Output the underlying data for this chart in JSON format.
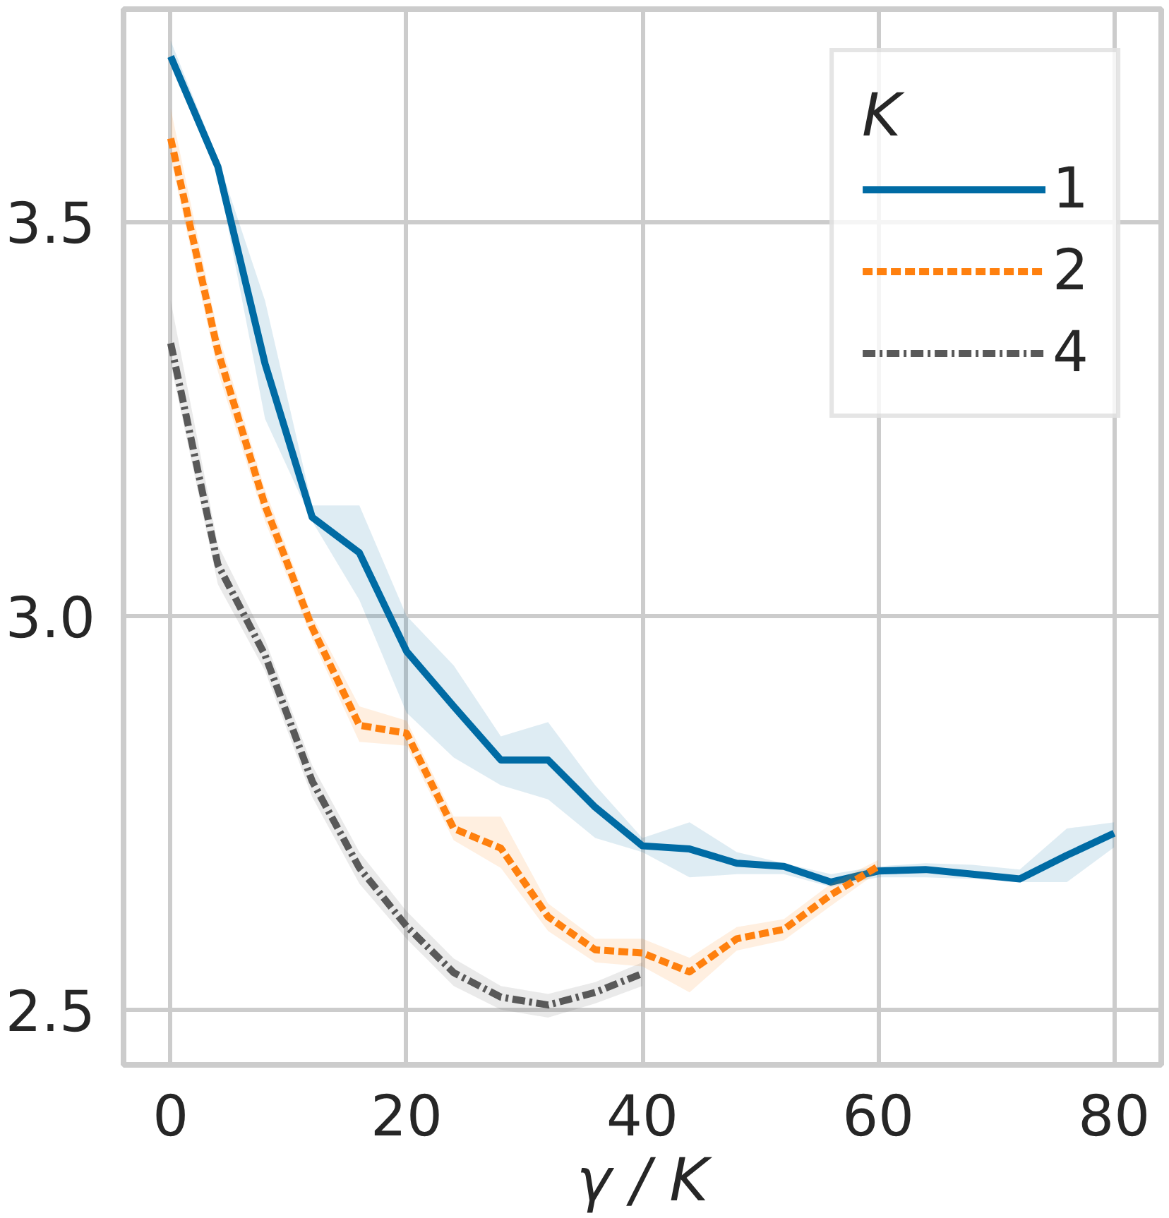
{
  "chart_data": {
    "type": "line",
    "xlabel": "γ / K",
    "legend_title": "K",
    "legend": "top right",
    "grid": true,
    "xlim": [
      -4,
      84
    ],
    "ylim": [
      2.43,
      3.77
    ],
    "xticks": [
      0,
      20,
      40,
      60,
      80
    ],
    "yticks": [
      2.5,
      {
        "value": 3.0,
        "label": "3.0"
      },
      3.5
    ],
    "series": [
      {
        "name": "1",
        "color": "#006ba4",
        "line_style": "solid",
        "x": [
          0,
          4,
          8,
          12,
          16,
          20,
          24,
          28,
          32,
          36,
          40,
          44,
          48,
          52,
          56,
          60,
          64,
          68,
          72,
          76,
          80
        ],
        "values": [
          3.71,
          3.57,
          3.32,
          3.125,
          3.08,
          2.955,
          2.885,
          2.817,
          2.817,
          2.757,
          2.708,
          2.704,
          2.686,
          2.682,
          2.662,
          2.676,
          2.678,
          2.672,
          2.666,
          2.696,
          2.724
        ],
        "upper": [
          3.73,
          3.58,
          3.4,
          3.14,
          3.14,
          3.0,
          2.937,
          2.847,
          2.865,
          2.785,
          2.718,
          2.738,
          2.7,
          2.686,
          2.672,
          2.682,
          2.686,
          2.684,
          2.678,
          2.73,
          2.738
        ],
        "lower": [
          3.7,
          3.56,
          3.25,
          3.12,
          3.02,
          2.877,
          2.82,
          2.785,
          2.767,
          2.718,
          2.7,
          2.668,
          2.672,
          2.672,
          2.656,
          2.668,
          2.668,
          2.666,
          2.662,
          2.662,
          2.706
        ]
      },
      {
        "name": "2",
        "color": "#ff800e",
        "line_style": "dashed",
        "x": [
          0,
          4,
          8,
          12,
          16,
          20,
          24,
          28,
          32,
          36,
          40,
          44,
          48,
          52,
          56,
          60
        ],
        "values": [
          3.606,
          3.336,
          3.14,
          2.985,
          2.861,
          2.851,
          2.73,
          2.705,
          2.618,
          2.576,
          2.572,
          2.548,
          2.59,
          2.602,
          2.646,
          2.682
        ],
        "upper": [
          3.644,
          3.36,
          3.16,
          3.0,
          2.885,
          2.867,
          2.745,
          2.745,
          2.635,
          2.59,
          2.59,
          2.566,
          2.605,
          2.615,
          2.66,
          2.69
        ],
        "lower": [
          3.58,
          3.31,
          3.12,
          2.97,
          2.84,
          2.835,
          2.715,
          2.68,
          2.6,
          2.56,
          2.555,
          2.522,
          2.575,
          2.588,
          2.632,
          2.675
        ]
      },
      {
        "name": "4",
        "color": "#595959",
        "line_style": "dashdot",
        "x": [
          0,
          4,
          8,
          12,
          16,
          20,
          24,
          28,
          32,
          36,
          40
        ],
        "values": [
          3.346,
          3.065,
          2.95,
          2.79,
          2.68,
          2.606,
          2.547,
          2.516,
          2.506,
          2.522,
          2.546
        ],
        "upper": [
          3.4,
          3.09,
          2.97,
          2.81,
          2.7,
          2.625,
          2.565,
          2.53,
          2.52,
          2.535,
          2.56
        ],
        "lower": [
          3.32,
          3.04,
          2.93,
          2.77,
          2.66,
          2.59,
          2.53,
          2.5,
          2.49,
          2.508,
          2.53
        ]
      }
    ]
  }
}
